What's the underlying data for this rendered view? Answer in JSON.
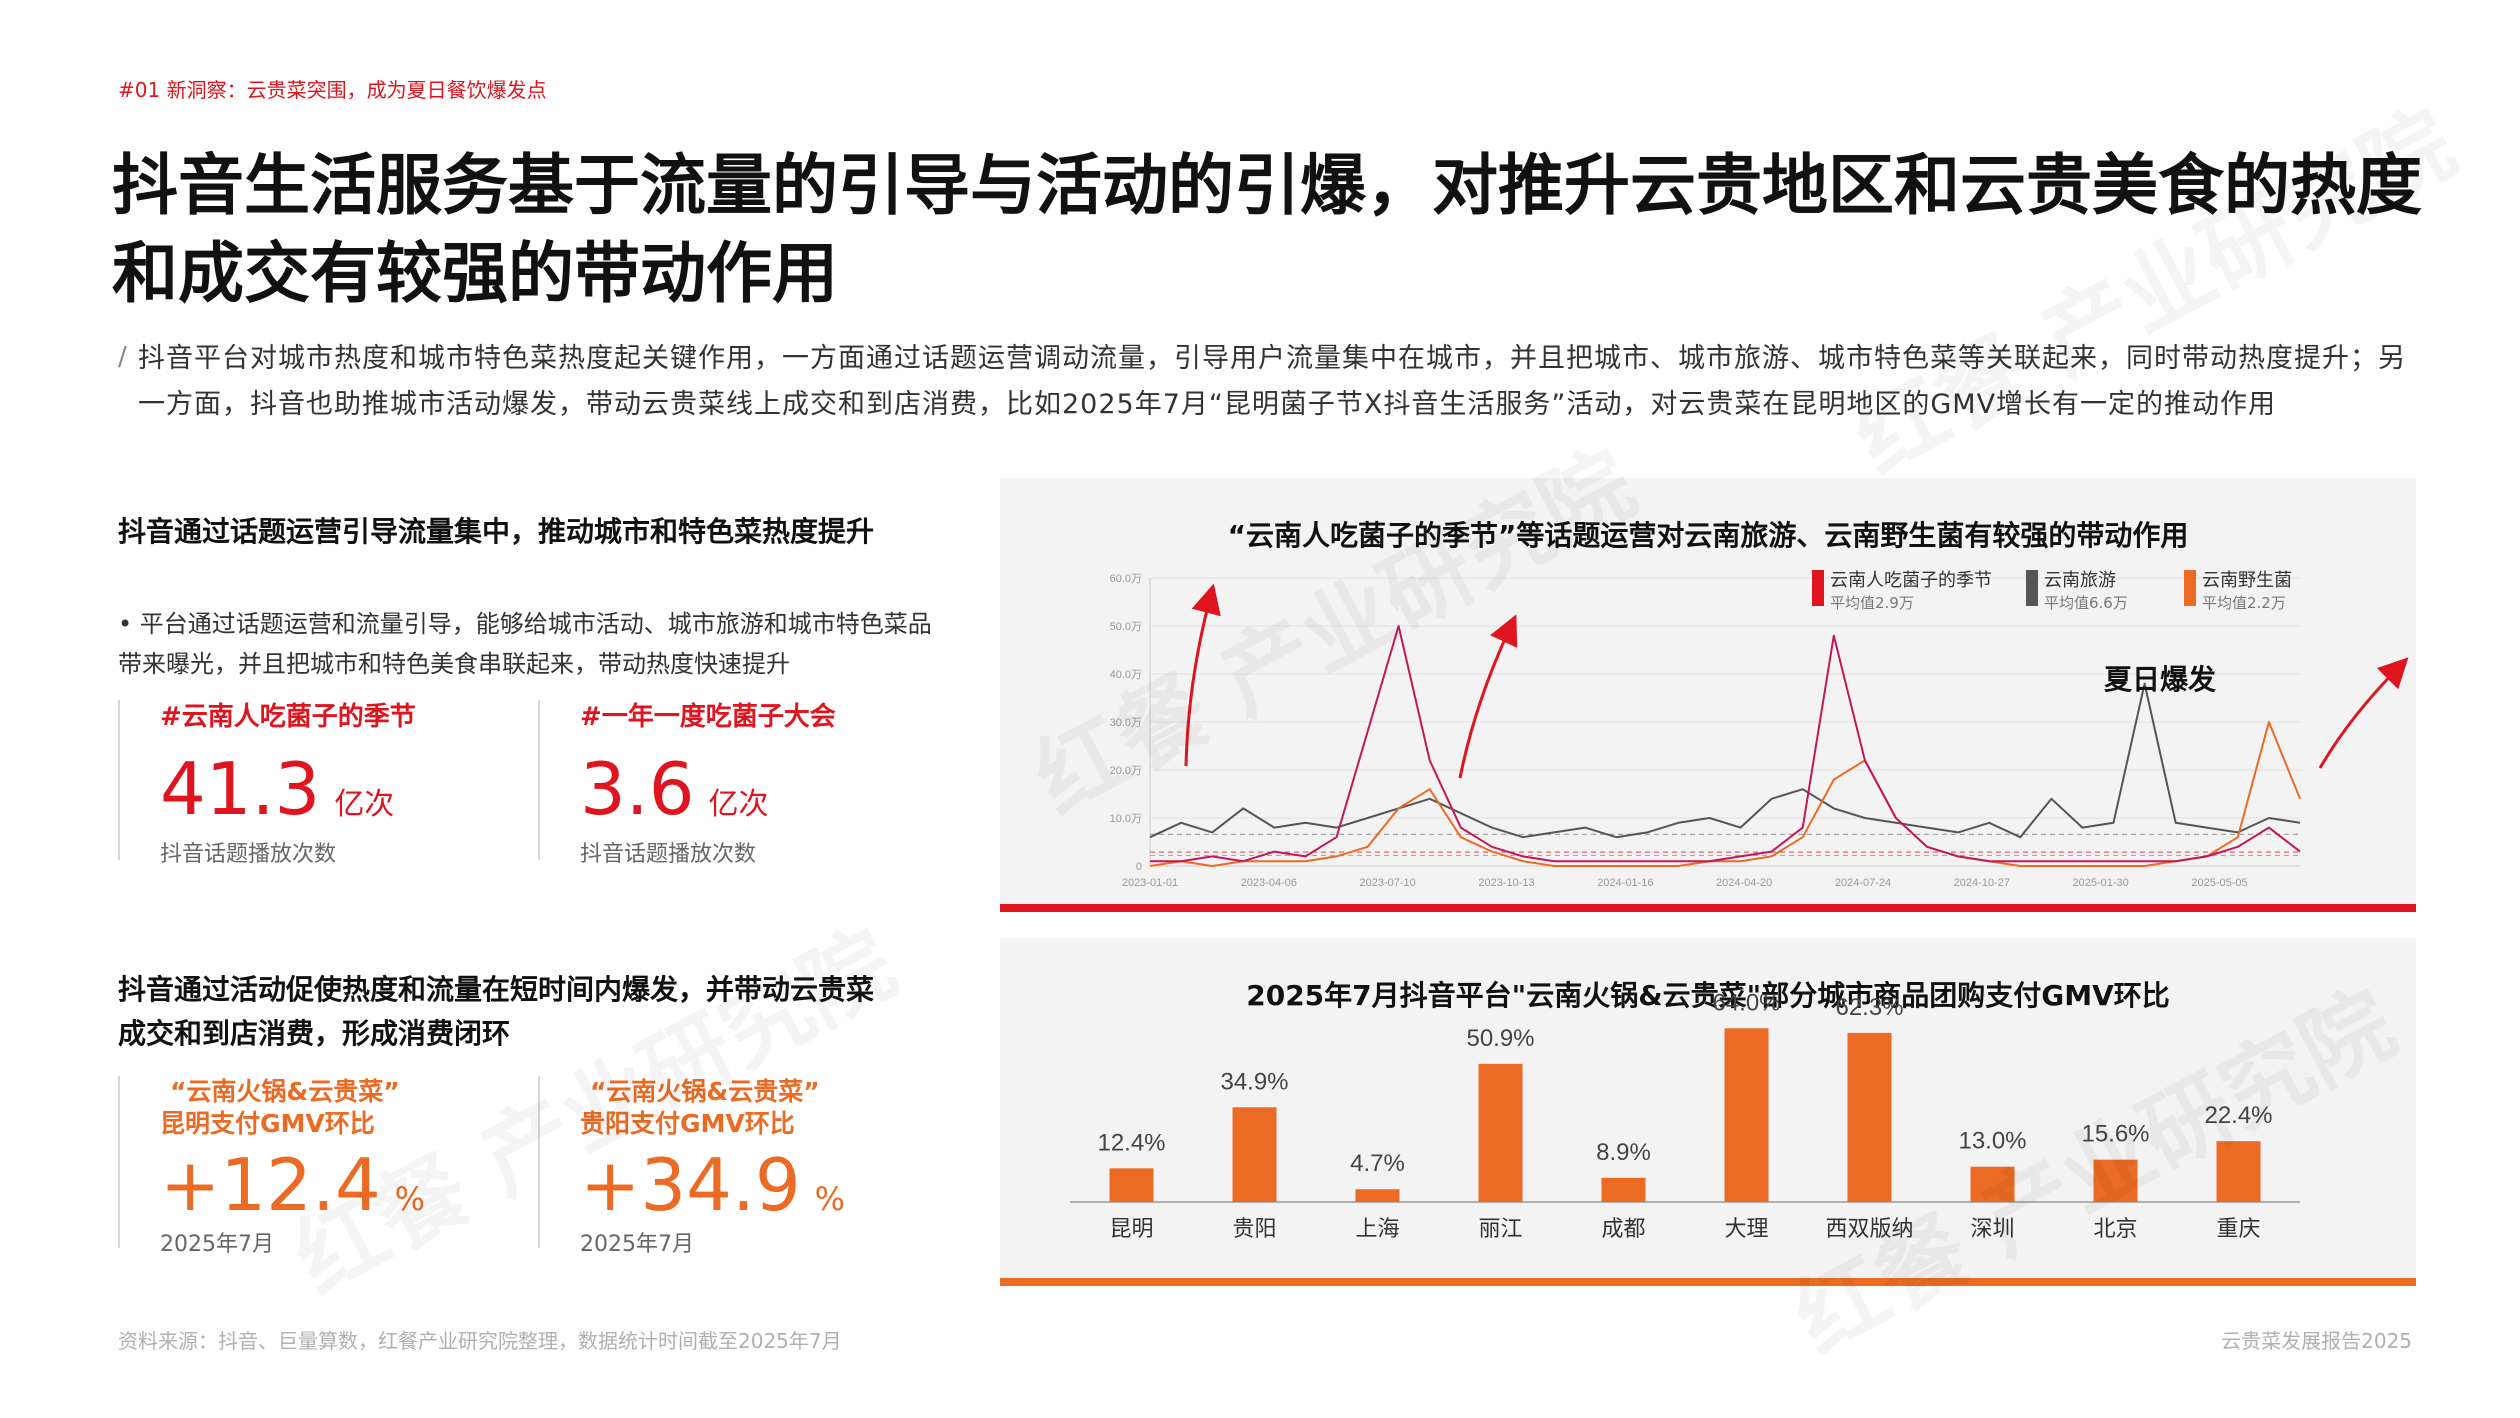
{
  "header": {
    "section_tag": "#01 新洞察：云贵菜突围，成为夏日餐饮爆发点",
    "title": "抖音生活服务基于流量的引导与活动的引爆，对推升云贵地区和云贵美食的热度和成交有较强的带动作用",
    "intro_mark": "/",
    "intro": "抖音平台对城市热度和城市特色菜热度起关键作用，一方面通过话题运营调动流量，引导用户流量集中在城市，并且把城市、城市旅游、城市特色菜等关联起来，同时带动热度提升；另一方面，抖音也助推城市活动爆发，带动云贵菜线上成交和到店消费，比如2025年7月“昆明菌子节X抖音生活服务”活动，对云贵菜在昆明地区的GMV增长有一定的推动作用"
  },
  "left_top": {
    "heading": "抖音通过话题运营引导流量集中，推动城市和特色菜热度提升",
    "bullet": "• 平台通过话题运营和流量引导，能够给城市活动、城市旅游和城市特色菜品带来曝光，并且把城市和特色美食串联起来，带动热度快速提升",
    "metrics": [
      {
        "label": "#云南人吃菌子的季节",
        "value": "41.3",
        "unit": "亿次",
        "caption": "抖音话题播放次数"
      },
      {
        "label": "#一年一度吃菌子大会",
        "value": "3.6",
        "unit": "亿次",
        "caption": "抖音话题播放次数"
      }
    ]
  },
  "left_bottom": {
    "heading": "抖音通过活动促使热度和流量在短时间内爆发，并带动云贵菜成交和到店消费，形成消费闭环",
    "metrics": [
      {
        "label_line1": "“云南火锅&云贵菜”",
        "label_line2": "昆明支付GMV环比",
        "value": "+12.4",
        "unit": "%",
        "caption": "2025年7月"
      },
      {
        "label_line1": "“云南火锅&云贵菜”",
        "label_line2": "贵阳支付GMV环比",
        "value": "+34.9",
        "unit": "%",
        "caption": "2025年7月"
      }
    ]
  },
  "line_panel": {
    "title": "“云南人吃菌子的季节”等话题运营对云南旅游、云南野生菌有较强的带动作用",
    "annotation": "夏日爆发"
  },
  "bar_panel": {
    "title": "2025年7月抖音平台\"云南火锅&云贵菜\"部分城市商品团购支付GMV环比"
  },
  "chart_data": [
    {
      "type": "line",
      "y_tick_labels": [
        "0",
        "10.0万",
        "20.0万",
        "30.0万",
        "40.0万",
        "50.0万",
        "60.0万"
      ],
      "ylim": [
        0,
        60
      ],
      "x_tick_labels": [
        "2023-01-01",
        "2023-04-06",
        "2023-07-10",
        "2023-10-13",
        "2024-01-16",
        "2024-04-20",
        "2024-07-24",
        "2024-10-27",
        "2025-01-30",
        "2025-05-05"
      ],
      "legend_placement": "top-right",
      "series": [
        {
          "name": "云南人吃菌子的季节",
          "sub": "平均值2.9万",
          "color": "#e0141e",
          "line_color": "#c2185b",
          "approx_values": [
            1,
            1,
            2,
            1,
            3,
            2,
            6,
            28,
            50,
            22,
            8,
            4,
            2,
            1,
            1,
            1,
            1,
            1,
            1,
            2,
            3,
            8,
            48,
            22,
            10,
            4,
            2,
            1,
            1,
            1,
            1,
            1,
            1,
            1,
            2,
            4,
            8,
            3
          ]
        },
        {
          "name": "云南旅游",
          "sub": "平均值6.6万",
          "color": "#555555",
          "line_color": "#555555",
          "approx_values": [
            6,
            9,
            7,
            12,
            8,
            9,
            8,
            10,
            12,
            14,
            11,
            8,
            6,
            7,
            8,
            6,
            7,
            9,
            10,
            8,
            14,
            16,
            12,
            10,
            9,
            8,
            7,
            9,
            6,
            14,
            8,
            9,
            38,
            9,
            8,
            7,
            10,
            9
          ]
        },
        {
          "name": "云南野生菌",
          "sub": "平均值2.2万",
          "color": "#ec6b24",
          "line_color": "#ec6b24",
          "approx_values": [
            0,
            1,
            0,
            1,
            1,
            1,
            2,
            4,
            12,
            16,
            6,
            3,
            1,
            0,
            0,
            0,
            0,
            0,
            1,
            1,
            2,
            6,
            18,
            22,
            10,
            4,
            2,
            1,
            0,
            0,
            0,
            0,
            0,
            1,
            2,
            6,
            30,
            14
          ]
        }
      ]
    },
    {
      "type": "bar",
      "categories": [
        "昆明",
        "贵阳",
        "上海",
        "丽江",
        "成都",
        "大理",
        "西双版纳",
        "深圳",
        "北京",
        "重庆"
      ],
      "values": [
        12.4,
        34.9,
        4.7,
        50.9,
        8.9,
        64.0,
        62.3,
        13.0,
        15.6,
        22.4
      ],
      "value_labels": [
        "12.4%",
        "34.9%",
        "4.7%",
        "50.9%",
        "8.9%",
        "64.0%",
        "62.3%",
        "13.0%",
        "15.6%",
        "22.4%"
      ],
      "color": "#ec6b24",
      "ylim": [
        0,
        70
      ]
    }
  ],
  "footer": {
    "source": "资料来源：抖音、巨量算数，红餐产业研究院整理，数据统计时间截至2025年7月",
    "report_name": "云贵菜发展报告2025"
  },
  "watermark": {
    "text": "红餐 产业研究院"
  }
}
